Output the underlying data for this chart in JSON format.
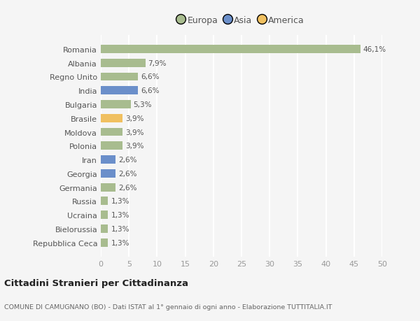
{
  "categories": [
    "Repubblica Ceca",
    "Bielorussia",
    "Ucraina",
    "Russia",
    "Germania",
    "Georgia",
    "Iran",
    "Polonia",
    "Moldova",
    "Brasile",
    "Bulgaria",
    "India",
    "Regno Unito",
    "Albania",
    "Romania"
  ],
  "values": [
    1.3,
    1.3,
    1.3,
    1.3,
    2.6,
    2.6,
    2.6,
    3.9,
    3.9,
    3.9,
    5.3,
    6.6,
    6.6,
    7.9,
    46.1
  ],
  "labels": [
    "1,3%",
    "1,3%",
    "1,3%",
    "1,3%",
    "2,6%",
    "2,6%",
    "2,6%",
    "3,9%",
    "3,9%",
    "3,9%",
    "5,3%",
    "6,6%",
    "6,6%",
    "7,9%",
    "46,1%"
  ],
  "colors": [
    "#a8bc8f",
    "#a8bc8f",
    "#a8bc8f",
    "#a8bc8f",
    "#a8bc8f",
    "#6b8fca",
    "#6b8fca",
    "#a8bc8f",
    "#a8bc8f",
    "#f0c060",
    "#a8bc8f",
    "#6b8fca",
    "#a8bc8f",
    "#a8bc8f",
    "#a8bc8f"
  ],
  "legend": [
    {
      "label": "Europa",
      "color": "#a8bc8f"
    },
    {
      "label": "Asia",
      "color": "#6b8fca"
    },
    {
      "label": "America",
      "color": "#f0c060"
    }
  ],
  "xlim": [
    0,
    50
  ],
  "xticks": [
    0,
    5,
    10,
    15,
    20,
    25,
    30,
    35,
    40,
    45,
    50
  ],
  "title": "Cittadini Stranieri per Cittadinanza",
  "subtitle": "COMUNE DI CAMUGNANO (BO) - Dati ISTAT al 1° gennaio di ogni anno - Elaborazione TUTTITALIA.IT",
  "background_color": "#f5f5f5",
  "grid_color": "#ffffff",
  "bar_height": 0.6
}
